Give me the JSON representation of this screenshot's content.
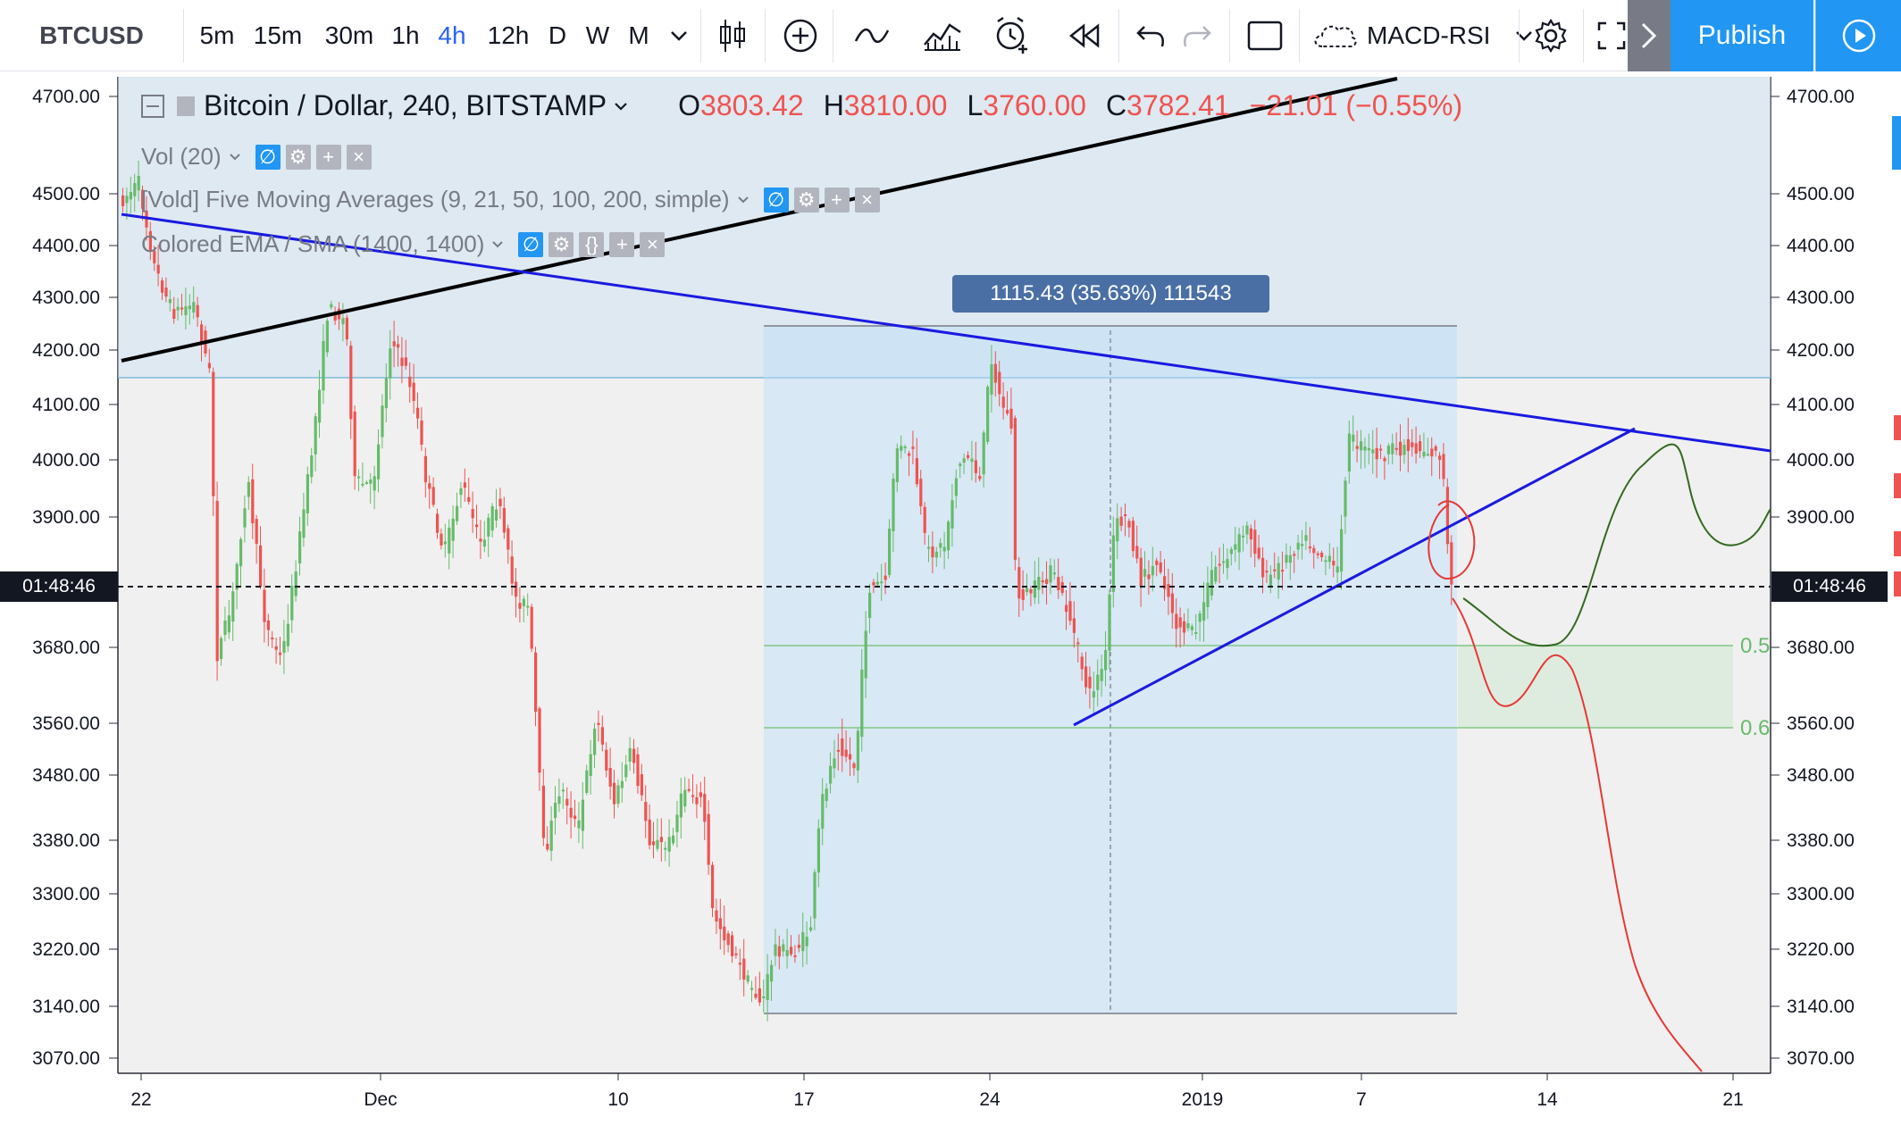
{
  "toolbar": {
    "symbol": "BTCUSD",
    "intervals": [
      "5m",
      "15m",
      "30m",
      "1h",
      "4h",
      "12h",
      "D",
      "W",
      "M"
    ],
    "active_interval": "4h",
    "indicator_template": "MACD-RSI",
    "publish_label": "Publish",
    "icons": [
      "chevron-down-icon",
      "candlestick-icon",
      "plus-circle-icon",
      "wave-icon",
      "indicators-icon",
      "alert-icon",
      "replay-icon",
      "undo-icon",
      "redo-icon",
      "rectangle-icon",
      "cloud-icon",
      "gear-icon",
      "fullscreen-icon",
      "play-icon"
    ]
  },
  "legend": {
    "title": "Bitcoin / Dollar, 240, BITSTAMP",
    "o_key": "O",
    "o": "3803.42",
    "h_key": "H",
    "h": "3810.00",
    "l_key": "L",
    "l": "3760.00",
    "c_key": "C",
    "c": "3782.41",
    "change": "−21.01 (−0.55%)",
    "indicators": [
      "Vol (20)",
      "[Vold] Five Moving Averages (9, 21, 50, 100, 200, simple)",
      "Colored EMA / SMA (1400, 1400)"
    ]
  },
  "measure": {
    "label": "1115.43 (35.63%) 111543"
  },
  "countdown": "01:48:46",
  "fib_labels": [
    "0.5",
    "0.6"
  ],
  "colors": {
    "up": "#26a69a",
    "down": "#ef5350",
    "up_muted": "#66bb6a",
    "trend_black": "#000000",
    "trend_blue": "#1a1ae0",
    "measure_fill": "#bbdefb",
    "green_path": "#2e7d32",
    "red_path": "#e53935"
  },
  "chart_data": {
    "type": "candlestick",
    "price_ticks": [
      "4700.00",
      "4500.00",
      "4400.00",
      "4300.00",
      "4200.00",
      "4100.00",
      "4000.00",
      "3900.00",
      "3680.00",
      "3560.00",
      "3480.00",
      "3380.00",
      "3300.00",
      "3220.00",
      "3140.00",
      "3070.00"
    ],
    "time_ticks": [
      "22",
      "Dec",
      "10",
      "17",
      "24",
      "2019",
      "7",
      "14",
      "21"
    ]
  }
}
